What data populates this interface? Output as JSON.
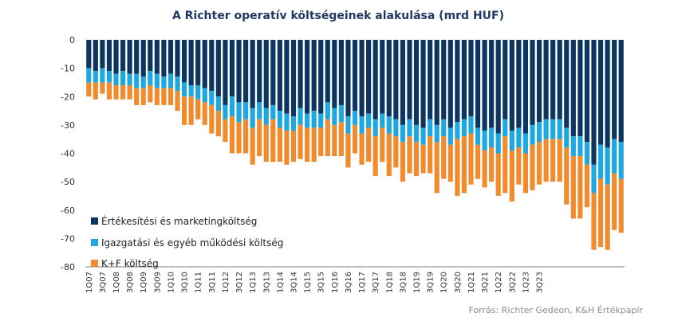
{
  "chart_data": {
    "type": "bar",
    "stacked": true,
    "title": "A Richter operatív költségeinek alakulása (mrd HUF)",
    "source": "Forrás: Richter Gedeon, K&H Értékpapír",
    "ylim": [
      -80,
      0
    ],
    "yticks": [
      0,
      -10,
      -20,
      -30,
      -40,
      -50,
      -60,
      -70,
      -80
    ],
    "grid": false,
    "legend_position": "bottom-left",
    "x_tick_labels": [
      "1Q07",
      "3Q07",
      "1Q08",
      "3Q08",
      "1Q09",
      "3Q09",
      "1Q10",
      "3Q10",
      "1Q11",
      "3Q11",
      "1Q12",
      "3Q12",
      "1Q13",
      "3Q13",
      "1Q14",
      "3Q14",
      "1Q15",
      "3Q15",
      "1Q16",
      "3Q16",
      "1Q17",
      "3Q17",
      "1Q18",
      "3Q18",
      "1Q19",
      "3Q19",
      "1Q20",
      "3Q20",
      "1Q21",
      "3Q21",
      "1Q22",
      "3Q22",
      "1Q23",
      "3Q23"
    ],
    "series": [
      {
        "name": "Értékesítési és marketingköltség",
        "color": "#0c3560",
        "values": [
          -10,
          -11,
          -10,
          -11,
          -12,
          -11,
          -12,
          -12,
          -13,
          -11,
          -12,
          -13,
          -12,
          -13,
          -15,
          -16,
          -16,
          -17,
          -18,
          -20,
          -23,
          -20,
          -22,
          -22,
          -24,
          -22,
          -24,
          -23,
          -25,
          -26,
          -27,
          -24,
          -26,
          -25,
          -26,
          -22,
          -24,
          -23,
          -27,
          -25,
          -27,
          -26,
          -28,
          -26,
          -27,
          -28,
          -30,
          -28,
          -30,
          -31,
          -28,
          -30,
          -28,
          -31,
          -29,
          -28,
          -27,
          -31,
          -32,
          -31,
          -33,
          -28,
          -32,
          -31,
          -33,
          -30,
          -29,
          -28,
          -28,
          -28,
          -31,
          -34,
          -34,
          -36,
          -44,
          -37,
          -38,
          -35,
          -36
        ]
      },
      {
        "name": "Igazgatási és egyéb működési költség",
        "color": "#1fa8e0",
        "values": [
          -5,
          -4,
          -5,
          -4,
          -4,
          -5,
          -4,
          -5,
          -4,
          -5,
          -5,
          -4,
          -5,
          -5,
          -5,
          -4,
          -5,
          -5,
          -5,
          -5,
          -5,
          -7,
          -7,
          -6,
          -7,
          -6,
          -6,
          -5,
          -6,
          -6,
          -5,
          -6,
          -5,
          -6,
          -5,
          -6,
          -6,
          -6,
          -6,
          -5,
          -6,
          -5,
          -6,
          -5,
          -6,
          -6,
          -6,
          -6,
          -6,
          -6,
          -6,
          -6,
          -6,
          -6,
          -6,
          -6,
          -6,
          -6,
          -7,
          -7,
          -7,
          -6,
          -7,
          -7,
          -7,
          -7,
          -7,
          -7,
          -7,
          -7,
          -7,
          -7,
          -7,
          -8,
          -10,
          -12,
          -13,
          -12,
          -13
        ]
      },
      {
        "name": "K+F költség",
        "color": "#f08c2e",
        "values": [
          -5,
          -6,
          -4,
          -6,
          -5,
          -5,
          -5,
          -6,
          -6,
          -6,
          -6,
          -6,
          -6,
          -7,
          -10,
          -10,
          -7,
          -8,
          -10,
          -9,
          -8,
          -13,
          -11,
          -12,
          -13,
          -13,
          -13,
          -15,
          -12,
          -12,
          -11,
          -12,
          -12,
          -12,
          -10,
          -13,
          -11,
          -12,
          -12,
          -10,
          -11,
          -12,
          -14,
          -12,
          -15,
          -11,
          -14,
          -13,
          -12,
          -10,
          -13,
          -18,
          -15,
          -13,
          -20,
          -20,
          -18,
          -12,
          -13,
          -12,
          -15,
          -20,
          -18,
          -13,
          -14,
          -16,
          -15,
          -15,
          -15,
          -15,
          -20,
          -22,
          -22,
          -15,
          -20,
          -24,
          -23,
          -20,
          -19
        ]
      }
    ]
  }
}
